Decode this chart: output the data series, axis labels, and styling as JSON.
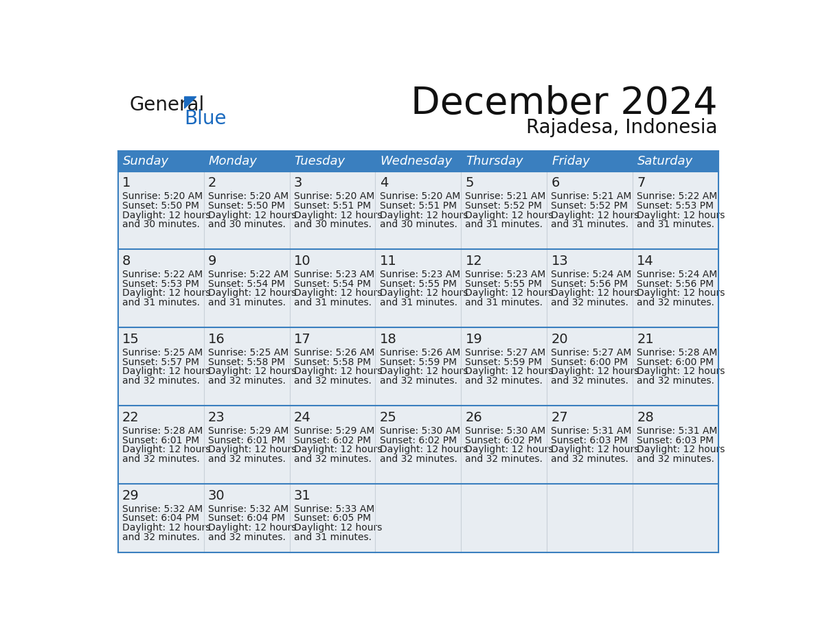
{
  "title": "December 2024",
  "subtitle": "Rajadesa, Indonesia",
  "header_bg_color": "#3a7fbf",
  "header_text_color": "#ffffff",
  "cell_bg_color": "#e8edf2",
  "empty_cell_bg_color": "#e8edf2",
  "border_color": "#3a7fbf",
  "row_divider_color": "#3a7fbf",
  "col_divider_color": "#c8d0d8",
  "text_color": "#222222",
  "day_headers": [
    "Sunday",
    "Monday",
    "Tuesday",
    "Wednesday",
    "Thursday",
    "Friday",
    "Saturday"
  ],
  "calendar": [
    [
      {
        "day": 1,
        "sunrise": "5:20 AM",
        "sunset": "5:50 PM",
        "daylight_hours": 12,
        "daylight_minutes": 30
      },
      {
        "day": 2,
        "sunrise": "5:20 AM",
        "sunset": "5:50 PM",
        "daylight_hours": 12,
        "daylight_minutes": 30
      },
      {
        "day": 3,
        "sunrise": "5:20 AM",
        "sunset": "5:51 PM",
        "daylight_hours": 12,
        "daylight_minutes": 30
      },
      {
        "day": 4,
        "sunrise": "5:20 AM",
        "sunset": "5:51 PM",
        "daylight_hours": 12,
        "daylight_minutes": 30
      },
      {
        "day": 5,
        "sunrise": "5:21 AM",
        "sunset": "5:52 PM",
        "daylight_hours": 12,
        "daylight_minutes": 31
      },
      {
        "day": 6,
        "sunrise": "5:21 AM",
        "sunset": "5:52 PM",
        "daylight_hours": 12,
        "daylight_minutes": 31
      },
      {
        "day": 7,
        "sunrise": "5:22 AM",
        "sunset": "5:53 PM",
        "daylight_hours": 12,
        "daylight_minutes": 31
      }
    ],
    [
      {
        "day": 8,
        "sunrise": "5:22 AM",
        "sunset": "5:53 PM",
        "daylight_hours": 12,
        "daylight_minutes": 31
      },
      {
        "day": 9,
        "sunrise": "5:22 AM",
        "sunset": "5:54 PM",
        "daylight_hours": 12,
        "daylight_minutes": 31
      },
      {
        "day": 10,
        "sunrise": "5:23 AM",
        "sunset": "5:54 PM",
        "daylight_hours": 12,
        "daylight_minutes": 31
      },
      {
        "day": 11,
        "sunrise": "5:23 AM",
        "sunset": "5:55 PM",
        "daylight_hours": 12,
        "daylight_minutes": 31
      },
      {
        "day": 12,
        "sunrise": "5:23 AM",
        "sunset": "5:55 PM",
        "daylight_hours": 12,
        "daylight_minutes": 31
      },
      {
        "day": 13,
        "sunrise": "5:24 AM",
        "sunset": "5:56 PM",
        "daylight_hours": 12,
        "daylight_minutes": 32
      },
      {
        "day": 14,
        "sunrise": "5:24 AM",
        "sunset": "5:56 PM",
        "daylight_hours": 12,
        "daylight_minutes": 32
      }
    ],
    [
      {
        "day": 15,
        "sunrise": "5:25 AM",
        "sunset": "5:57 PM",
        "daylight_hours": 12,
        "daylight_minutes": 32
      },
      {
        "day": 16,
        "sunrise": "5:25 AM",
        "sunset": "5:58 PM",
        "daylight_hours": 12,
        "daylight_minutes": 32
      },
      {
        "day": 17,
        "sunrise": "5:26 AM",
        "sunset": "5:58 PM",
        "daylight_hours": 12,
        "daylight_minutes": 32
      },
      {
        "day": 18,
        "sunrise": "5:26 AM",
        "sunset": "5:59 PM",
        "daylight_hours": 12,
        "daylight_minutes": 32
      },
      {
        "day": 19,
        "sunrise": "5:27 AM",
        "sunset": "5:59 PM",
        "daylight_hours": 12,
        "daylight_minutes": 32
      },
      {
        "day": 20,
        "sunrise": "5:27 AM",
        "sunset": "6:00 PM",
        "daylight_hours": 12,
        "daylight_minutes": 32
      },
      {
        "day": 21,
        "sunrise": "5:28 AM",
        "sunset": "6:00 PM",
        "daylight_hours": 12,
        "daylight_minutes": 32
      }
    ],
    [
      {
        "day": 22,
        "sunrise": "5:28 AM",
        "sunset": "6:01 PM",
        "daylight_hours": 12,
        "daylight_minutes": 32
      },
      {
        "day": 23,
        "sunrise": "5:29 AM",
        "sunset": "6:01 PM",
        "daylight_hours": 12,
        "daylight_minutes": 32
      },
      {
        "day": 24,
        "sunrise": "5:29 AM",
        "sunset": "6:02 PM",
        "daylight_hours": 12,
        "daylight_minutes": 32
      },
      {
        "day": 25,
        "sunrise": "5:30 AM",
        "sunset": "6:02 PM",
        "daylight_hours": 12,
        "daylight_minutes": 32
      },
      {
        "day": 26,
        "sunrise": "5:30 AM",
        "sunset": "6:02 PM",
        "daylight_hours": 12,
        "daylight_minutes": 32
      },
      {
        "day": 27,
        "sunrise": "5:31 AM",
        "sunset": "6:03 PM",
        "daylight_hours": 12,
        "daylight_minutes": 32
      },
      {
        "day": 28,
        "sunrise": "5:31 AM",
        "sunset": "6:03 PM",
        "daylight_hours": 12,
        "daylight_minutes": 32
      }
    ],
    [
      {
        "day": 29,
        "sunrise": "5:32 AM",
        "sunset": "6:04 PM",
        "daylight_hours": 12,
        "daylight_minutes": 32
      },
      {
        "day": 30,
        "sunrise": "5:32 AM",
        "sunset": "6:04 PM",
        "daylight_hours": 12,
        "daylight_minutes": 32
      },
      {
        "day": 31,
        "sunrise": "5:33 AM",
        "sunset": "6:05 PM",
        "daylight_hours": 12,
        "daylight_minutes": 31
      },
      null,
      null,
      null,
      null
    ]
  ],
  "logo_general_color": "#1a1a1a",
  "logo_blue_color": "#1a6abf",
  "logo_triangle_color": "#1a6abf",
  "title_fontsize": 40,
  "subtitle_fontsize": 20,
  "header_fontsize": 13,
  "day_num_fontsize": 14,
  "cell_fontsize": 10
}
